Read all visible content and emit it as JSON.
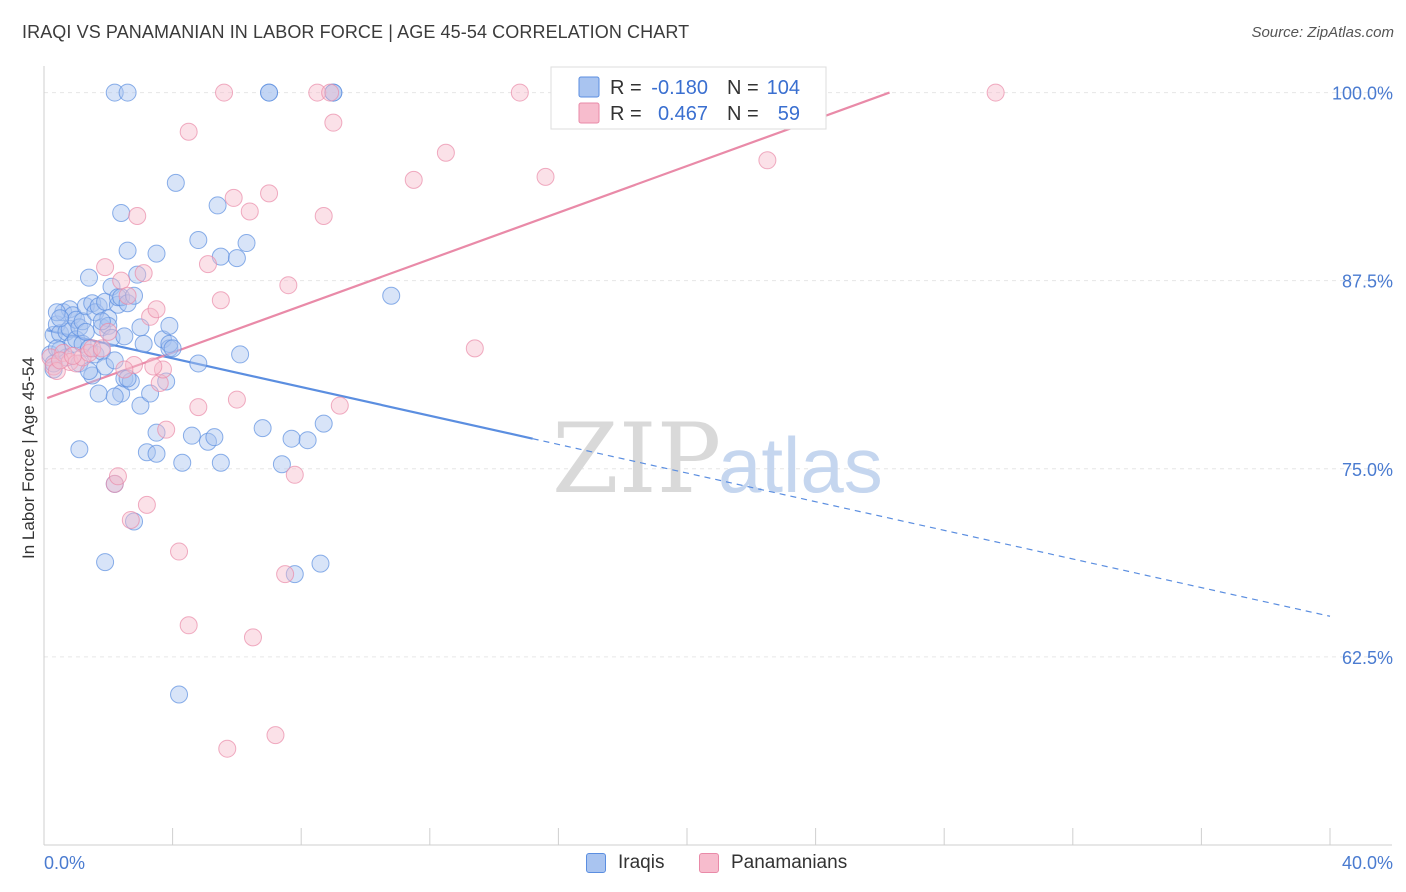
{
  "title": "IRAQI VS PANAMANIAN IN LABOR FORCE | AGE 45-54 CORRELATION CHART",
  "source": "Source: ZipAtlas.com",
  "watermark": {
    "zip": "ZIP",
    "atlas": "atlas"
  },
  "legend": {
    "r_label": "R =",
    "n_label": "N =",
    "rows": [
      {
        "r": "-0.180",
        "n": "104",
        "fill": "#a9c4f0",
        "stroke": "#5b8ee0"
      },
      {
        "r": "0.467",
        "n": "59",
        "fill": "#f7bccd",
        "stroke": "#e98aa8"
      }
    ]
  },
  "bottom_legend": [
    {
      "label": "Iraqis",
      "fill": "#a9c4f0",
      "stroke": "#5b8ee0"
    },
    {
      "label": "Panamanians",
      "fill": "#f7bccd",
      "stroke": "#e98aa8"
    }
  ],
  "chart_data": {
    "type": "scatter",
    "title": "IRAQI VS PANAMANIAN IN LABOR FORCE | AGE 45-54 CORRELATION CHART",
    "xlabel": "",
    "ylabel": "In Labor Force | Age 45-54",
    "xlim": [
      0,
      40
    ],
    "ylim": [
      50,
      101.5
    ],
    "x_tick_labels": [
      "0.0%",
      "40.0%"
    ],
    "y_ticks": [
      62.5,
      75.0,
      87.5,
      100.0
    ],
    "y_tick_labels": [
      "62.5%",
      "75.0%",
      "87.5%",
      "100.0%"
    ],
    "grid": true,
    "legend_position": "top-center",
    "series": [
      {
        "name": "Iraqis",
        "color": "#5b8ee0",
        "fill": "#a9c4f0",
        "trend": {
          "x0": 0.1,
          "y0": 84.2,
          "x1": 15.2,
          "y1": 77.0,
          "x_dash_end": 40.0,
          "y_dash_end": 65.2
        },
        "points": [
          [
            0.2,
            82.6
          ],
          [
            0.3,
            81.6
          ],
          [
            0.3,
            83.9
          ],
          [
            0.4,
            84.6
          ],
          [
            0.5,
            84.0
          ],
          [
            0.5,
            82.9
          ],
          [
            0.6,
            85.4
          ],
          [
            0.7,
            84.1
          ],
          [
            0.7,
            82.4
          ],
          [
            0.8,
            85.6
          ],
          [
            0.8,
            84.3
          ],
          [
            0.9,
            85.2
          ],
          [
            0.9,
            83.3
          ],
          [
            1.0,
            84.9
          ],
          [
            1.0,
            83.6
          ],
          [
            1.1,
            84.4
          ],
          [
            1.1,
            82.0
          ],
          [
            1.2,
            83.3
          ],
          [
            1.2,
            84.8
          ],
          [
            1.3,
            85.8
          ],
          [
            1.3,
            84.1
          ],
          [
            1.4,
            83.0
          ],
          [
            1.4,
            87.7
          ],
          [
            1.5,
            86.0
          ],
          [
            1.5,
            81.2
          ],
          [
            1.6,
            82.6
          ],
          [
            1.6,
            85.4
          ],
          [
            1.7,
            80.0
          ],
          [
            1.7,
            85.8
          ],
          [
            1.8,
            84.4
          ],
          [
            1.8,
            82.8
          ],
          [
            1.9,
            86.1
          ],
          [
            1.9,
            81.8
          ],
          [
            2.0,
            85.0
          ],
          [
            2.0,
            84.5
          ],
          [
            2.1,
            87.1
          ],
          [
            2.1,
            83.7
          ],
          [
            2.2,
            82.2
          ],
          [
            2.3,
            85.9
          ],
          [
            2.3,
            86.4
          ],
          [
            2.4,
            80.0
          ],
          [
            2.4,
            86.4
          ],
          [
            2.5,
            81.0
          ],
          [
            2.5,
            83.8
          ],
          [
            2.6,
            89.5
          ],
          [
            2.6,
            86.0
          ],
          [
            2.7,
            80.8
          ],
          [
            2.8,
            86.5
          ],
          [
            2.8,
            71.5
          ],
          [
            2.9,
            87.9
          ],
          [
            3.0,
            84.4
          ],
          [
            3.0,
            79.2
          ],
          [
            3.1,
            83.3
          ],
          [
            3.2,
            76.1
          ],
          [
            3.3,
            80.0
          ],
          [
            3.5,
            89.3
          ],
          [
            3.5,
            76.0
          ],
          [
            3.7,
            83.6
          ],
          [
            3.8,
            80.8
          ],
          [
            3.9,
            84.5
          ],
          [
            3.9,
            83.0
          ],
          [
            3.9,
            83.3
          ],
          [
            3.5,
            77.4
          ],
          [
            4.0,
            83.0
          ],
          [
            4.1,
            94.0
          ],
          [
            4.3,
            75.4
          ],
          [
            4.2,
            60.0
          ],
          [
            4.6,
            77.2
          ],
          [
            4.8,
            82.0
          ],
          [
            4.8,
            90.2
          ],
          [
            5.1,
            76.8
          ],
          [
            5.3,
            77.1
          ],
          [
            5.5,
            75.4
          ],
          [
            5.5,
            89.1
          ],
          [
            6.0,
            89.0
          ],
          [
            5.4,
            92.5
          ],
          [
            6.3,
            90.0
          ],
          [
            6.1,
            82.6
          ],
          [
            6.8,
            77.7
          ],
          [
            7.0,
            100.0
          ],
          [
            7.0,
            100.0
          ],
          [
            7.4,
            75.3
          ],
          [
            7.7,
            77.0
          ],
          [
            8.2,
            76.9
          ],
          [
            8.7,
            78.0
          ],
          [
            8.6,
            68.7
          ],
          [
            9.0,
            100.0
          ],
          [
            9.0,
            100.0
          ],
          [
            10.8,
            86.5
          ],
          [
            2.2,
            100.0
          ],
          [
            2.6,
            100.0
          ],
          [
            2.4,
            92.0
          ],
          [
            1.9,
            68.8
          ],
          [
            2.2,
            74.0
          ],
          [
            1.1,
            76.3
          ],
          [
            0.4,
            83.0
          ],
          [
            0.4,
            85.4
          ],
          [
            0.5,
            85.0
          ],
          [
            0.3,
            82.0
          ],
          [
            1.4,
            81.5
          ],
          [
            2.6,
            81.0
          ],
          [
            2.2,
            79.8
          ],
          [
            7.8,
            68.0
          ],
          [
            1.8,
            84.8
          ]
        ]
      },
      {
        "name": "Panamanians",
        "color": "#e98aa8",
        "fill": "#f7bccd",
        "trend": {
          "x0": 0.1,
          "y0": 79.7,
          "x1": 26.3,
          "y1": 100.0
        },
        "points": [
          [
            0.2,
            82.4
          ],
          [
            0.3,
            81.8
          ],
          [
            0.4,
            81.5
          ],
          [
            0.6,
            82.7
          ],
          [
            0.8,
            82.1
          ],
          [
            1.0,
            82.0
          ],
          [
            1.2,
            82.4
          ],
          [
            1.4,
            82.7
          ],
          [
            1.5,
            83.0
          ],
          [
            1.9,
            88.4
          ],
          [
            2.0,
            84.1
          ],
          [
            2.2,
            74.0
          ],
          [
            2.3,
            74.5
          ],
          [
            2.4,
            87.5
          ],
          [
            2.6,
            86.5
          ],
          [
            2.7,
            71.6
          ],
          [
            2.8,
            81.9
          ],
          [
            2.9,
            91.8
          ],
          [
            3.1,
            88.0
          ],
          [
            3.2,
            72.6
          ],
          [
            3.3,
            85.1
          ],
          [
            3.5,
            85.6
          ],
          [
            3.6,
            80.7
          ],
          [
            3.7,
            81.6
          ],
          [
            3.8,
            77.6
          ],
          [
            4.2,
            69.5
          ],
          [
            4.5,
            64.6
          ],
          [
            4.5,
            97.4
          ],
          [
            4.8,
            79.1
          ],
          [
            5.1,
            88.6
          ],
          [
            5.5,
            86.2
          ],
          [
            5.6,
            100.0
          ],
          [
            5.7,
            56.4
          ],
          [
            5.9,
            93.0
          ],
          [
            6.0,
            79.6
          ],
          [
            6.4,
            92.1
          ],
          [
            6.5,
            63.8
          ],
          [
            7.0,
            93.3
          ],
          [
            7.2,
            57.3
          ],
          [
            7.5,
            68.0
          ],
          [
            7.6,
            87.2
          ],
          [
            7.8,
            74.6
          ],
          [
            8.5,
            100.0
          ],
          [
            8.9,
            100.0
          ],
          [
            8.7,
            91.8
          ],
          [
            9.0,
            98.0
          ],
          [
            9.2,
            79.2
          ],
          [
            11.5,
            94.2
          ],
          [
            12.5,
            96.0
          ],
          [
            13.4,
            83.0
          ],
          [
            14.8,
            100.0
          ],
          [
            15.6,
            94.4
          ],
          [
            22.5,
            95.5
          ],
          [
            29.6,
            100.0
          ],
          [
            0.5,
            82.2
          ],
          [
            0.9,
            82.5
          ],
          [
            1.8,
            83.0
          ],
          [
            2.5,
            81.6
          ],
          [
            3.4,
            81.8
          ]
        ]
      }
    ]
  }
}
